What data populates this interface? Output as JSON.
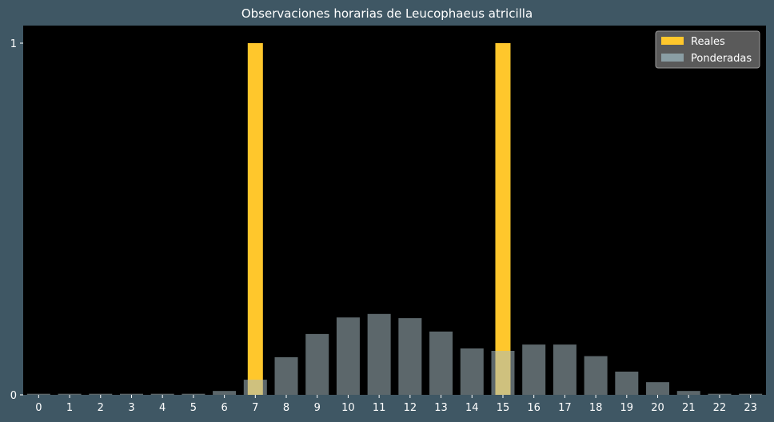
{
  "chart_data": {
    "type": "bar",
    "title": "Observaciones horarias de Leucophaeus atricilla",
    "xlabel": "",
    "ylabel": "",
    "categories": [
      "0",
      "1",
      "2",
      "3",
      "4",
      "5",
      "6",
      "7",
      "8",
      "9",
      "10",
      "11",
      "12",
      "13",
      "14",
      "15",
      "16",
      "17",
      "18",
      "19",
      "20",
      "21",
      "22",
      "23"
    ],
    "ylim": [
      0,
      1.05
    ],
    "yticks": [
      "0",
      "1"
    ],
    "grid": false,
    "legend_position": "top-right",
    "series": [
      {
        "name": "Reales",
        "color": "#ffc72c",
        "values": [
          0,
          0,
          0,
          0,
          0,
          0,
          0,
          1,
          0,
          0,
          0,
          0,
          0,
          0,
          0,
          1,
          0,
          0,
          0,
          0,
          0,
          0,
          0,
          0
        ]
      },
      {
        "name": "Ponderadas",
        "color": "#a7bcc2",
        "opacity": 0.55,
        "values": [
          0.003,
          0.003,
          0.003,
          0.003,
          0.003,
          0.003,
          0.011,
          0.043,
          0.107,
          0.173,
          0.22,
          0.23,
          0.218,
          0.18,
          0.132,
          0.125,
          0.143,
          0.143,
          0.11,
          0.066,
          0.036,
          0.011,
          0.003,
          0.003
        ]
      }
    ]
  }
}
